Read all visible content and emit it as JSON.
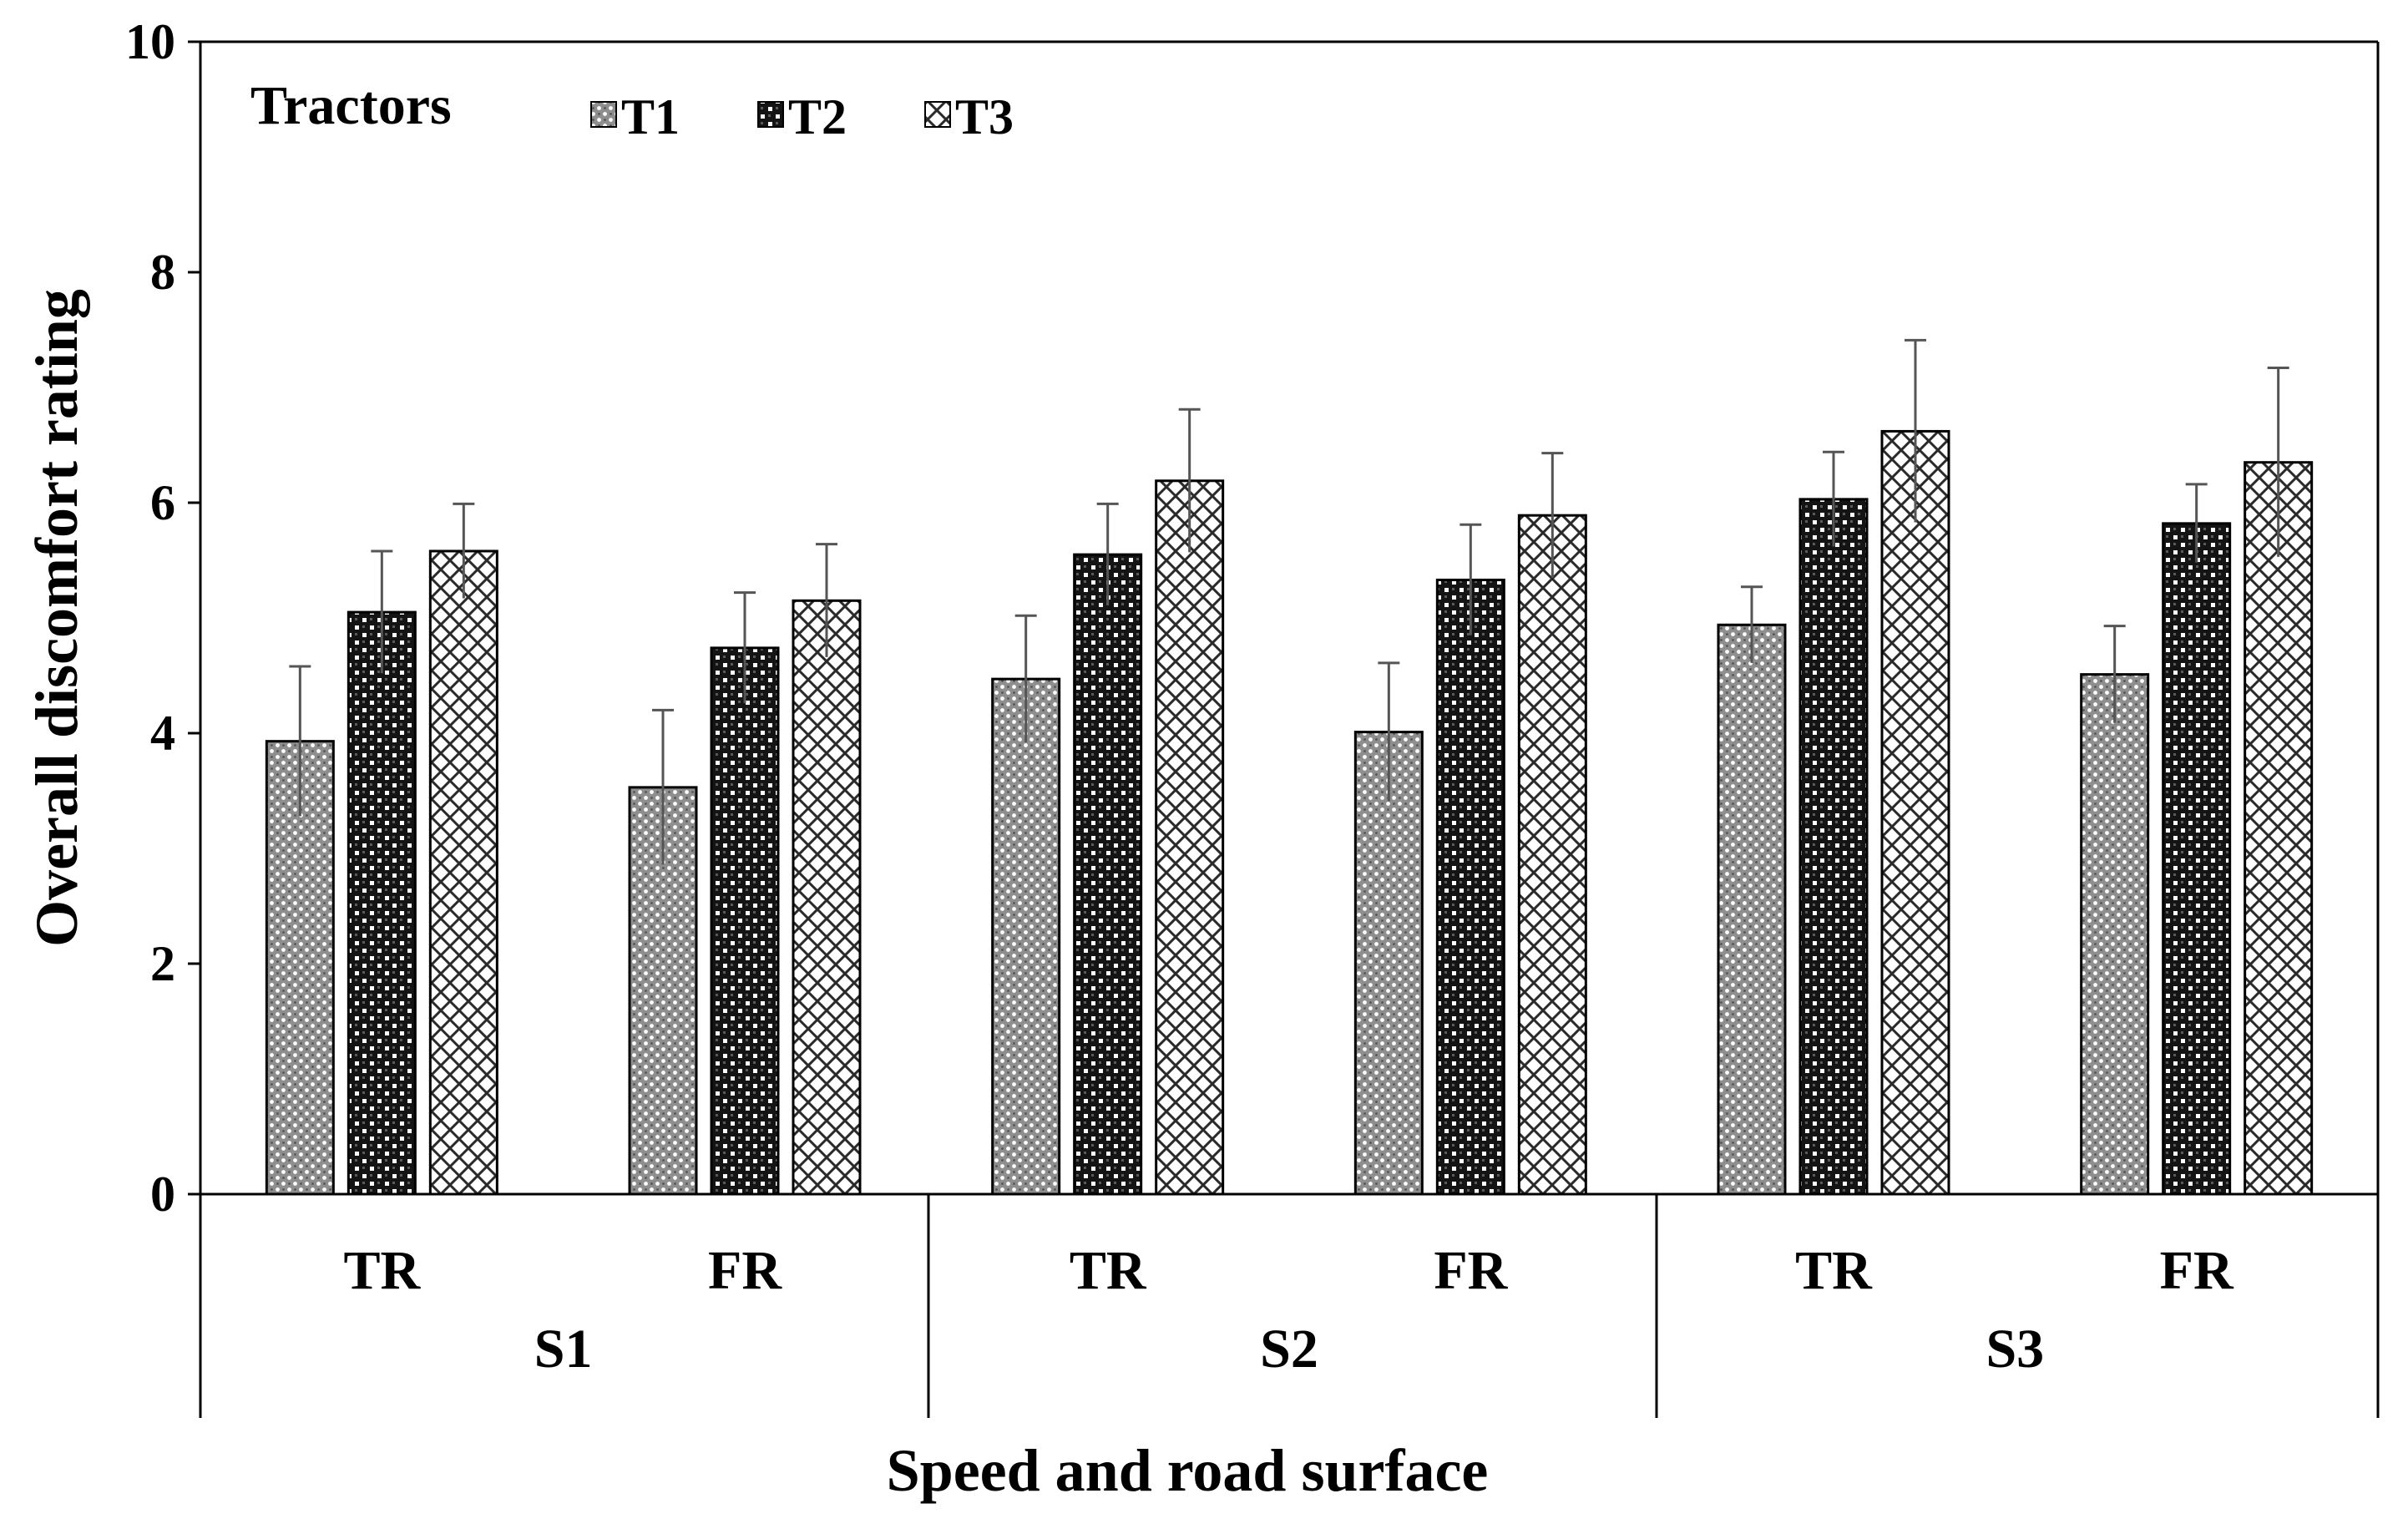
{
  "chart_data": {
    "type": "bar",
    "title": "",
    "xlabel": "Speed and road surface",
    "ylabel": "Overall discomfort rating",
    "ylim": [
      0,
      10
    ],
    "yticks": [
      "0",
      "2",
      "4",
      "6",
      "8",
      "10"
    ],
    "legend_title": "Tractors",
    "legend_position": "top-left",
    "categories": [
      "TR",
      "FR",
      "TR",
      "FR",
      "TR",
      "FR"
    ],
    "groups": [
      "S1",
      "S2",
      "S3"
    ],
    "series": [
      {
        "name": "T1",
        "pattern": "dotted",
        "values": [
          3.93,
          3.53,
          4.47,
          4.01,
          4.94,
          4.51
        ],
        "errors": [
          0.65,
          0.67,
          0.55,
          0.6,
          0.33,
          0.42
        ]
      },
      {
        "name": "T2",
        "pattern": "checker",
        "values": [
          5.05,
          4.74,
          5.55,
          5.33,
          6.03,
          5.82
        ],
        "errors": [
          0.53,
          0.48,
          0.44,
          0.48,
          0.41,
          0.34
        ]
      },
      {
        "name": "T3",
        "pattern": "crosshatch",
        "values": [
          5.58,
          5.15,
          6.19,
          5.89,
          6.62,
          6.35
        ],
        "errors": [
          0.41,
          0.49,
          0.62,
          0.54,
          0.79,
          0.82
        ]
      }
    ]
  }
}
